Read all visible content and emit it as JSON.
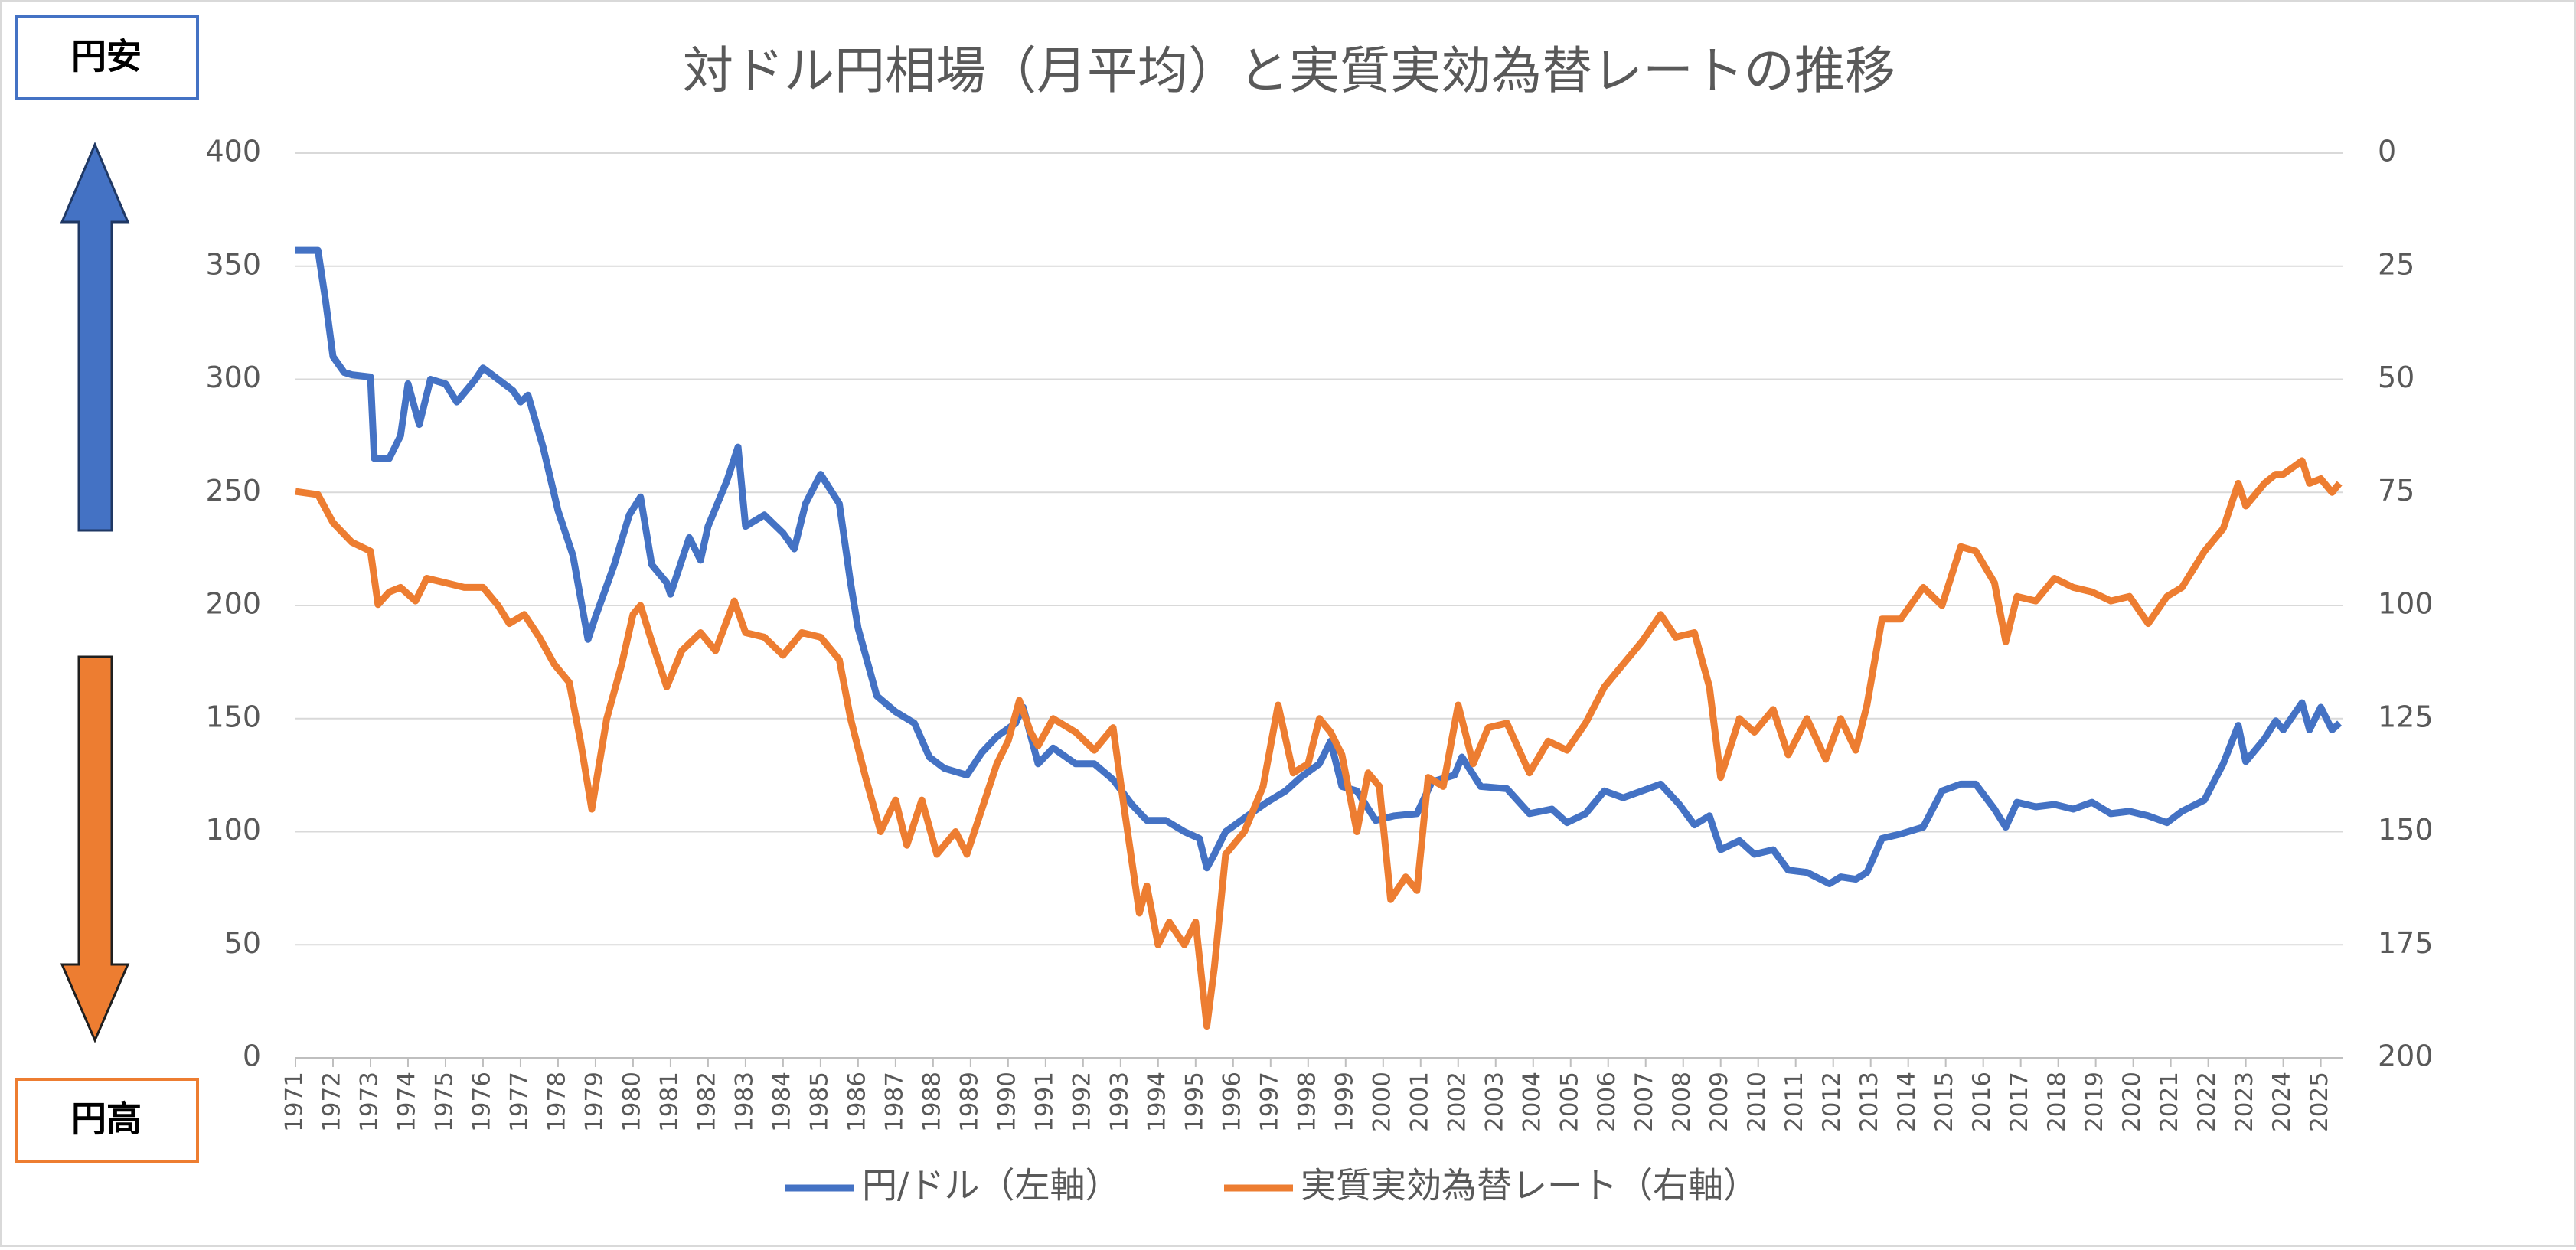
{
  "chart_data": {
    "type": "line",
    "title": "対ドル円相場（月平均）と実質実効為替レートの推移",
    "xlim": [
      1971,
      2025.6
    ],
    "xticks": [
      1971,
      1972,
      1973,
      1974,
      1975,
      1976,
      1977,
      1978,
      1979,
      1980,
      1981,
      1982,
      1983,
      1984,
      1985,
      1986,
      1987,
      1988,
      1989,
      1990,
      1991,
      1992,
      1993,
      1994,
      1995,
      1996,
      1997,
      1998,
      1999,
      2000,
      2001,
      2002,
      2003,
      2004,
      2005,
      2006,
      2007,
      2008,
      2009,
      2010,
      2011,
      2012,
      2013,
      2014,
      2015,
      2016,
      2017,
      2018,
      2019,
      2020,
      2021,
      2022,
      2023,
      2024,
      2025
    ],
    "ylim": [
      0,
      400
    ],
    "yticks": [
      0,
      50,
      100,
      150,
      200,
      250,
      300,
      350,
      400
    ],
    "y2lim": [
      200,
      0
    ],
    "y2ticks": [
      0,
      25,
      50,
      75,
      100,
      125,
      150,
      175,
      200
    ],
    "grid": true,
    "legend": "bottom",
    "annotations": {
      "weak": "円安",
      "strong": "円高"
    },
    "series": [
      {
        "name": "円/ドル（左軸）",
        "color": "#4472c4",
        "axis": "y",
        "x": [
          1971.0,
          1971.6,
          1971.8,
          1972.0,
          1972.3,
          1972.5,
          1973.0,
          1973.1,
          1973.5,
          1973.8,
          1974.0,
          1974.3,
          1974.6,
          1975.0,
          1975.3,
          1975.8,
          1976.0,
          1976.4,
          1976.8,
          1977.0,
          1977.2,
          1977.6,
          1978.0,
          1978.4,
          1978.8,
          1979.0,
          1979.5,
          1979.9,
          1980.2,
          1980.5,
          1980.9,
          1981.0,
          1981.5,
          1981.8,
          1982.0,
          1982.5,
          1982.8,
          1983.0,
          1983.5,
          1984.0,
          1984.3,
          1984.6,
          1985.0,
          1985.5,
          1985.8,
          1986.0,
          1986.5,
          1987.0,
          1987.5,
          1987.9,
          1988.3,
          1988.9,
          1989.3,
          1989.7,
          1990.2,
          1990.4,
          1990.8,
          1991.2,
          1991.8,
          1992.3,
          1992.8,
          1993.3,
          1993.7,
          1994.2,
          1994.7,
          1995.1,
          1995.3,
          1995.5,
          1995.8,
          1996.3,
          1996.9,
          1997.4,
          1997.8,
          1998.3,
          1998.6,
          1998.9,
          1999.3,
          1999.8,
          2000.3,
          2000.9,
          2001.3,
          2001.9,
          2002.1,
          2002.6,
          2003.3,
          2003.9,
          2004.5,
          2004.9,
          2005.4,
          2005.9,
          2006.4,
          2006.9,
          2007.4,
          2007.9,
          2008.3,
          2008.7,
          2009.0,
          2009.5,
          2009.9,
          2010.4,
          2010.8,
          2011.3,
          2011.9,
          2012.2,
          2012.6,
          2012.9,
          2013.3,
          2013.8,
          2014.4,
          2014.9,
          2015.4,
          2015.8,
          2016.3,
          2016.6,
          2016.9,
          2017.4,
          2017.9,
          2018.4,
          2018.9,
          2019.4,
          2019.9,
          2020.4,
          2020.9,
          2021.3,
          2021.9,
          2022.4,
          2022.8,
          2023.0,
          2023.5,
          2023.8,
          2024.0,
          2024.5,
          2024.7,
          2025.0,
          2025.3,
          2025.5
        ],
        "values": [
          357,
          357,
          335,
          310,
          303,
          302,
          301,
          265,
          265,
          275,
          298,
          280,
          300,
          298,
          290,
          300,
          305,
          300,
          295,
          290,
          293,
          270,
          242,
          222,
          185,
          195,
          218,
          240,
          248,
          218,
          210,
          205,
          230,
          220,
          235,
          255,
          270,
          235,
          240,
          232,
          225,
          245,
          258,
          245,
          210,
          190,
          160,
          153,
          148,
          133,
          128,
          125,
          135,
          142,
          148,
          155,
          130,
          137,
          130,
          130,
          123,
          112,
          105,
          105,
          100,
          97,
          84,
          90,
          100,
          106,
          113,
          118,
          124,
          130,
          140,
          120,
          118,
          105,
          107,
          108,
          122,
          125,
          133,
          120,
          119,
          108,
          110,
          104,
          108,
          118,
          115,
          118,
          121,
          112,
          103,
          107,
          92,
          96,
          90,
          92,
          83,
          82,
          77,
          80,
          79,
          82,
          97,
          99,
          102,
          118,
          121,
          121,
          110,
          102,
          113,
          111,
          112,
          110,
          113,
          108,
          109,
          107,
          104,
          109,
          114,
          130,
          147,
          131,
          141,
          149,
          145,
          157,
          145,
          155,
          145,
          148
        ]
      },
      {
        "name": "実質実効為替レート（右軸）",
        "color": "#ed7d31",
        "axis": "y2",
        "x": [
          1971.0,
          1971.6,
          1972.0,
          1972.5,
          1973.0,
          1973.2,
          1973.5,
          1973.8,
          1974.2,
          1974.5,
          1975.0,
          1975.5,
          1976.0,
          1976.4,
          1976.7,
          1977.1,
          1977.5,
          1977.9,
          1978.3,
          1978.6,
          1978.9,
          1979.3,
          1979.7,
          1980.0,
          1980.2,
          1980.5,
          1980.9,
          1981.3,
          1981.8,
          1982.2,
          1982.7,
          1983.0,
          1983.5,
          1984.0,
          1984.5,
          1985.0,
          1985.5,
          1985.8,
          1986.2,
          1986.6,
          1987.0,
          1987.3,
          1987.7,
          1988.1,
          1988.6,
          1988.9,
          1989.3,
          1989.7,
          1990.0,
          1990.3,
          1990.6,
          1990.8,
          1991.2,
          1991.8,
          1992.3,
          1992.8,
          1993.1,
          1993.5,
          1993.7,
          1994.0,
          1994.3,
          1994.7,
          1995.0,
          1995.3,
          1995.5,
          1995.8,
          1996.3,
          1996.8,
          1997.2,
          1997.6,
          1998.0,
          1998.3,
          1998.6,
          1998.9,
          1999.3,
          1999.6,
          1999.9,
          2000.2,
          2000.6,
          2000.9,
          2001.2,
          2001.6,
          2002.0,
          2002.4,
          2002.8,
          2003.3,
          2003.9,
          2004.4,
          2004.9,
          2005.4,
          2005.9,
          2006.4,
          2006.9,
          2007.4,
          2007.8,
          2008.3,
          2008.7,
          2009.0,
          2009.5,
          2009.9,
          2010.4,
          2010.8,
          2011.3,
          2011.8,
          2012.2,
          2012.6,
          2012.9,
          2013.3,
          2013.8,
          2014.4,
          2014.9,
          2015.4,
          2015.8,
          2016.3,
          2016.6,
          2016.9,
          2017.4,
          2017.9,
          2018.4,
          2018.9,
          2019.4,
          2019.9,
          2020.4,
          2020.9,
          2021.3,
          2021.9,
          2022.4,
          2022.8,
          2023.0,
          2023.5,
          2023.8,
          2024.0,
          2024.5,
          2024.7,
          2025.0,
          2025.3,
          2025.5
        ],
        "values": [
          74.8,
          75.5,
          81.7,
          86,
          88,
          99.8,
          97,
          96,
          99,
          94,
          95,
          96,
          96,
          100,
          104,
          102,
          107,
          113,
          117,
          130,
          145,
          125,
          113,
          102,
          100,
          108,
          118,
          110,
          106,
          110,
          99,
          106,
          107,
          111,
          106,
          107,
          112,
          125,
          138,
          150,
          143,
          153,
          143,
          155,
          150,
          155,
          145,
          135,
          130,
          121,
          128,
          131,
          125,
          128,
          132,
          127,
          145,
          168,
          162,
          175,
          170,
          175,
          170,
          193,
          180,
          155,
          150,
          140,
          122,
          137,
          135,
          125,
          128,
          133,
          150,
          137,
          140,
          165,
          160,
          163,
          138,
          140,
          122,
          135,
          127,
          126,
          137,
          130,
          132,
          126,
          118,
          113,
          108,
          102,
          107,
          106,
          118,
          138,
          125,
          128,
          123,
          133,
          125,
          134,
          125,
          132,
          122,
          103,
          103,
          96,
          100,
          87,
          88,
          95,
          108,
          98,
          99,
          94,
          96,
          97,
          99,
          98,
          104,
          98,
          96,
          88,
          83,
          73,
          78,
          73,
          71,
          71,
          68,
          73,
          72,
          75,
          73
        ]
      }
    ]
  }
}
